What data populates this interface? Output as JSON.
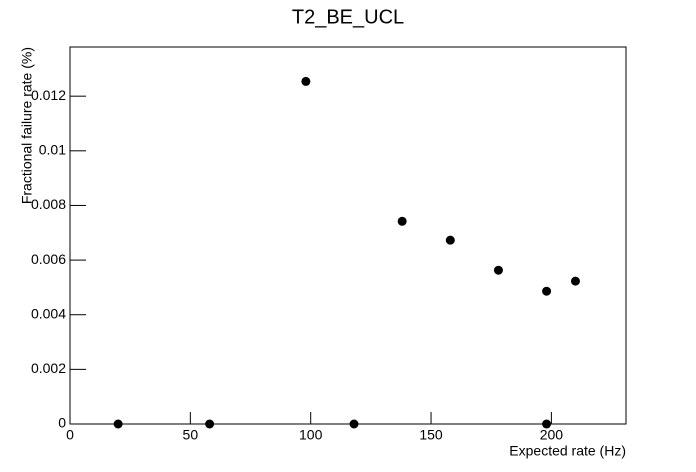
{
  "chart_data": {
    "type": "scatter",
    "title": "T2_BE_UCL",
    "x_label": "Expected rate (Hz)",
    "y_label": "Fractional failure rate (%)",
    "series": [
      {
        "color": "#000000",
        "x": [
          20,
          58,
          98,
          118,
          138,
          158,
          178,
          198,
          198,
          210
        ],
        "values": [
          0,
          0,
          0.01254,
          0,
          0.00742,
          0.00673,
          0.00563,
          0.00486,
          0,
          0.00523
        ]
      }
    ],
    "xlim": [
      0,
      231
    ],
    "ylim": [
      0,
      0.0138
    ],
    "xticks": [
      0,
      50,
      100,
      150,
      200
    ],
    "yticks": [
      0,
      0.002,
      0.004,
      0.006,
      0.008,
      0.01,
      0.012
    ]
  }
}
